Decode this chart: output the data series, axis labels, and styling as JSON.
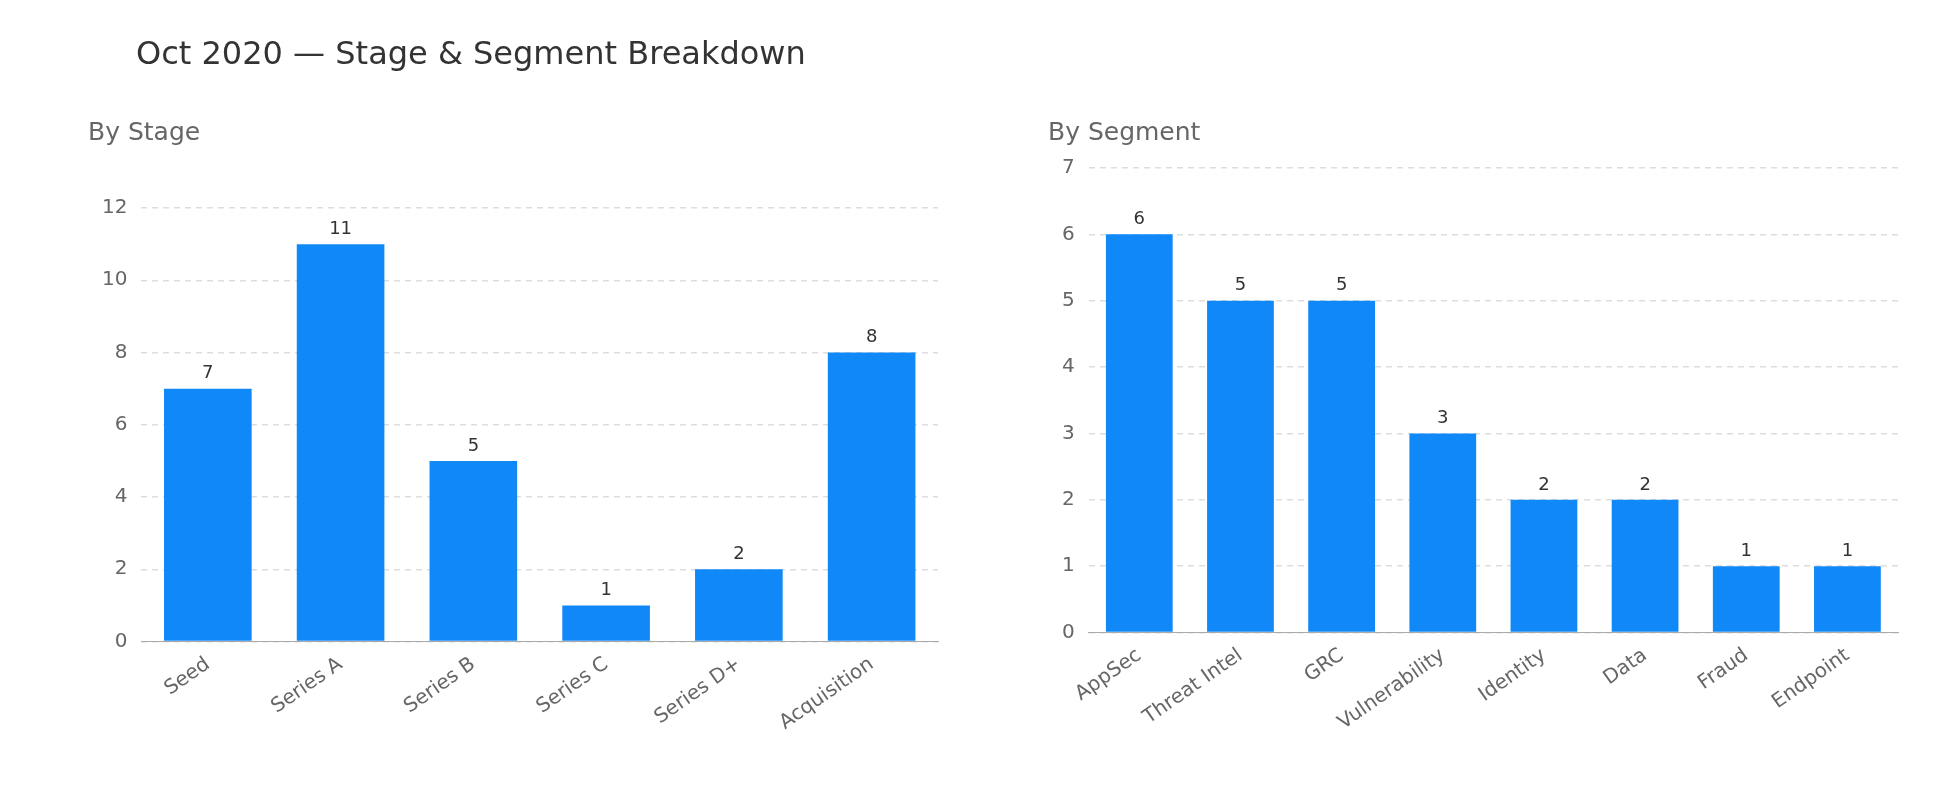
{
  "chart_data": [
    {
      "type": "other",
      "title": "Oct 2020 — Stage & Segment Breakdown"
    },
    {
      "type": "bar",
      "title": "By Stage",
      "categories": [
        "Seed",
        "Series A",
        "Series B",
        "Series C",
        "Series D+",
        "Acquisition"
      ],
      "values": [
        7,
        11,
        5,
        1,
        2,
        8
      ],
      "color": "#1188f8",
      "ylim": [
        0,
        12
      ],
      "yticks": [
        0,
        2,
        4,
        6,
        8,
        10,
        12
      ],
      "grid": "y",
      "data_labels": true
    },
    {
      "type": "bar",
      "title": "By Segment",
      "categories": [
        "AppSec",
        "Threat Intel",
        "GRC",
        "Vulnerability",
        "Identity",
        "Data",
        "Fraud",
        "Endpoint"
      ],
      "values": [
        6,
        5,
        5,
        3,
        2,
        2,
        1,
        1
      ],
      "color": "#1188f8",
      "ylim": [
        0,
        7
      ],
      "yticks": [
        0,
        1,
        2,
        3,
        4,
        5,
        6,
        7
      ],
      "grid": "y",
      "data_labels": true
    }
  ]
}
